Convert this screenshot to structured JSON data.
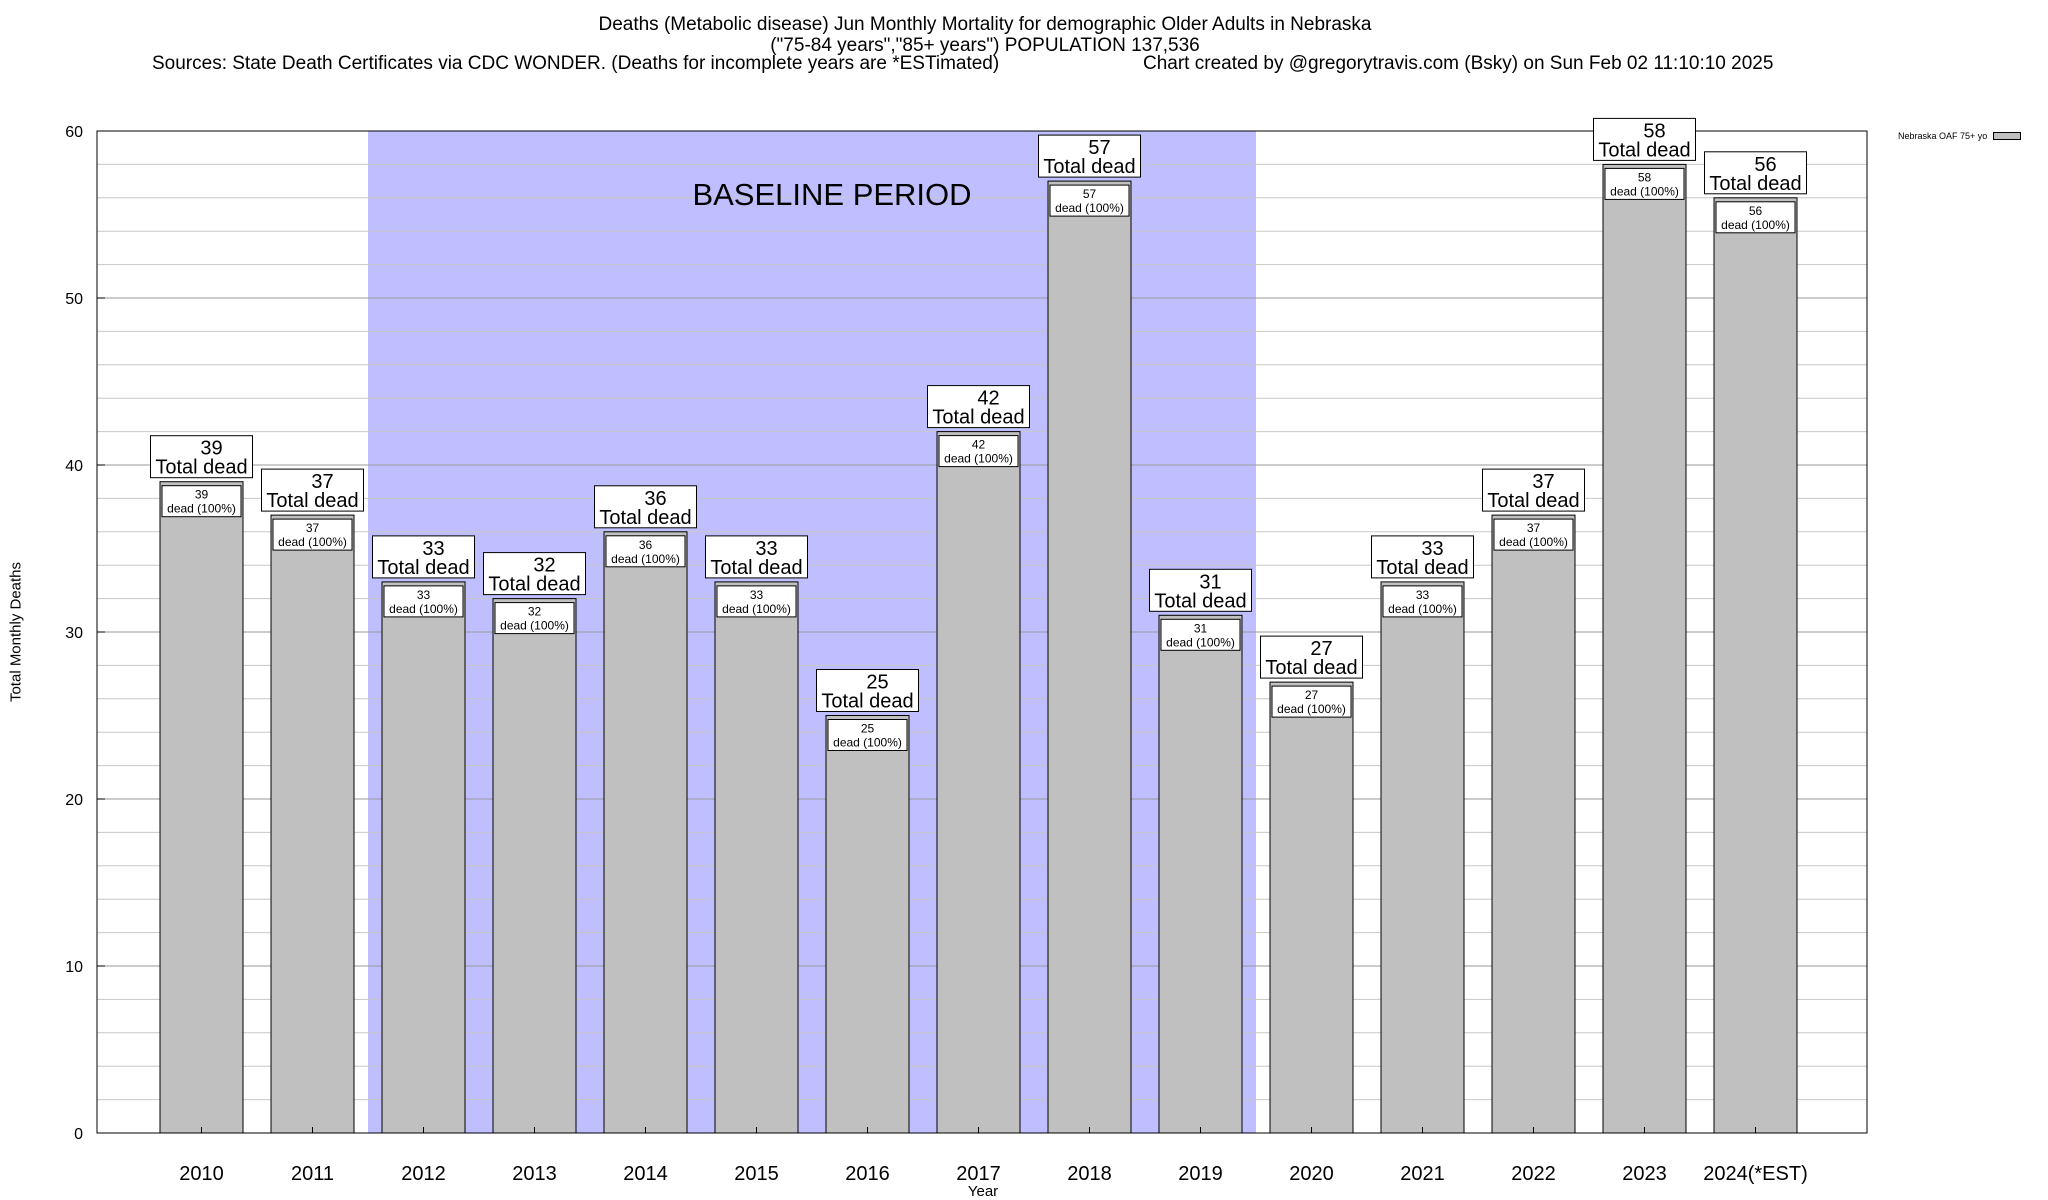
{
  "chart_data": {
    "type": "bar",
    "title_lines": [
      "Deaths (Metabolic disease) Jun Monthly Mortality for demographic Older Adults in Nebraska",
      "(\"75-84 years\",\"85+ years\") POPULATION 137,536"
    ],
    "sources": "Sources: State Death Certificates via CDC WONDER. (Deaths for incomplete years are *ESTimated)",
    "credit": "Chart created by @gregorytravis.com (Bsky) on Sun Feb 02 11:10:10 2025",
    "xlabel": "Year",
    "ylabel": "Total Monthly Deaths",
    "ylim": [
      0,
      60
    ],
    "yticks": [
      0,
      10,
      20,
      30,
      40,
      50,
      60
    ],
    "categories": [
      "2010",
      "2011",
      "2012",
      "2013",
      "2014",
      "2015",
      "2016",
      "2017",
      "2018",
      "2019",
      "2020",
      "2021",
      "2022",
      "2023",
      "2024(*EST)"
    ],
    "series": [
      {
        "name": "Nebraska OAF 75+ yo",
        "values": [
          39,
          37,
          33,
          32,
          36,
          33,
          25,
          42,
          57,
          31,
          27,
          33,
          37,
          58,
          56
        ],
        "color": "#c0c0c0"
      }
    ],
    "top_label_suffix": "Total dead",
    "inner_label_suffix": "dead (100%)",
    "baseline_period": {
      "label": "BASELINE PERIOD",
      "start": "2012",
      "end": "2019",
      "color": "#bfbfff"
    },
    "grid": true,
    "legend_position": "top-right"
  }
}
